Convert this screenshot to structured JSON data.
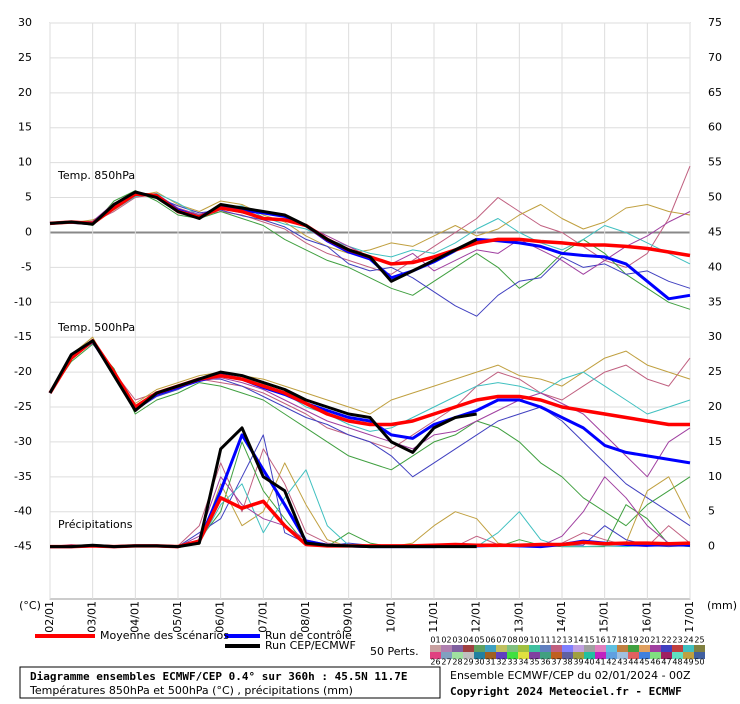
{
  "chart_data": {
    "type": "line",
    "title": "Diagramme ensembles ECMWF/CEP 0.4° sur 360h : 45.5N 11.7E",
    "subtitle": "Températures 850hPa et 500hPa (°C) , précipitations (mm)",
    "run_info": "Ensemble ECMWF/CEP du 02/01/2024 - 00Z",
    "copyright": "Copyright 2024 Meteociel.fr - ECMWF",
    "y_label": "(°C)",
    "y2_label": "(mm)",
    "annotations": [
      "Temp. 850hPa",
      "Temp. 500hPa",
      "Précipitations"
    ],
    "perturbations_label": "50 Perts.",
    "perturbation_labels": [
      "01",
      "02",
      "03",
      "04",
      "05",
      "06",
      "07",
      "08",
      "09",
      "10",
      "11",
      "12",
      "13",
      "14",
      "15",
      "16",
      "17",
      "18",
      "19",
      "20",
      "21",
      "22",
      "23",
      "24",
      "25",
      "26",
      "27",
      "28",
      "29",
      "30",
      "31",
      "32",
      "33",
      "34",
      "35",
      "36",
      "37",
      "38",
      "39",
      "40",
      "41",
      "42",
      "43",
      "44",
      "45",
      "46",
      "47",
      "48",
      "49",
      "50"
    ],
    "perturbation_colors": [
      "#c8a0a0",
      "#b080b0",
      "#8060a0",
      "#a04040",
      "#60a060",
      "#40a0c0",
      "#c0c060",
      "#80c080",
      "#a0c040",
      "#40c0a0",
      "#6080c0",
      "#c06080",
      "#8080ff",
      "#c0a0e0",
      "#a0a0a0",
      "#e080c0",
      "#60c0e0",
      "#c08040",
      "#40a040",
      "#e0a060",
      "#a040a0",
      "#4040c0",
      "#c04040",
      "#40c0c0",
      "#808040",
      "#e04080",
      "#80a0c0",
      "#a0e0a0",
      "#c0c0c0",
      "#2080a0",
      "#a06020",
      "#6040c0",
      "#40e040",
      "#e0e040",
      "#8040a0",
      "#40a080",
      "#c06020",
      "#6060a0",
      "#a0a040",
      "#20c0a0",
      "#c020c0",
      "#60a0e0",
      "#a0c0e0",
      "#e06060",
      "#4080e0",
      "#80e080",
      "#a02060",
      "#60e0c0",
      "#c0a040",
      "#4060a0"
    ],
    "grid": true,
    "x": [
      0,
      0.5,
      1,
      1.5,
      2,
      2.5,
      3,
      3.5,
      4,
      4.5,
      5,
      5.5,
      6,
      6.5,
      7,
      7.5,
      8,
      8.5,
      9,
      9.5,
      10,
      10.5,
      11,
      11.5,
      12,
      12.5,
      13,
      13.5,
      14,
      14.5,
      15
    ],
    "xlim": [
      0,
      15
    ],
    "xticks": [
      {
        "value": 0,
        "label": "02/01"
      },
      {
        "value": 1,
        "label": "03/01"
      },
      {
        "value": 2,
        "label": "04/01"
      },
      {
        "value": 3,
        "label": "05/01"
      },
      {
        "value": 4,
        "label": "06/01"
      },
      {
        "value": 5,
        "label": "07/01"
      },
      {
        "value": 6,
        "label": "08/01"
      },
      {
        "value": 7,
        "label": "09/01"
      },
      {
        "value": 8,
        "label": "10/01"
      },
      {
        "value": 9,
        "label": "11/01"
      },
      {
        "value": 10,
        "label": "12/01"
      },
      {
        "value": 11,
        "label": "13/01"
      },
      {
        "value": 12,
        "label": "14/01"
      },
      {
        "value": 13,
        "label": "15/01"
      },
      {
        "value": 14,
        "label": "16/01"
      },
      {
        "value": 15,
        "label": "17/01"
      }
    ],
    "ylim": [
      -52.5,
      30
    ],
    "yticks": [
      -45,
      -40,
      -35,
      -30,
      -25,
      -20,
      -15,
      -10,
      -5,
      0,
      5,
      10,
      15,
      20,
      25,
      30
    ],
    "y2lim": [
      -7.5,
      75
    ],
    "y2ticks": [
      0,
      5,
      10,
      15,
      20,
      25,
      30,
      35,
      40,
      45,
      50,
      55,
      60,
      65,
      70,
      75
    ],
    "series": [
      {
        "color": "#c06080",
        "width": 1,
        "values": [
          1.3,
          1.5,
          1.5,
          3.0,
          5.0,
          5.5,
          3.5,
          2.5,
          3.0,
          2.5,
          1.5,
          0.5,
          -1.5,
          -3.0,
          -4.0,
          -5.0,
          -6.0,
          -4.0,
          -2.0,
          0.0,
          2.0,
          5.0,
          3.0,
          1.0,
          0.0,
          -2.0,
          -4.0,
          -5.0,
          -3.0,
          2.0,
          9.5
        ]
      },
      {
        "color": "#40a040",
        "width": 1,
        "values": [
          1.2,
          1.6,
          1.0,
          4.5,
          6.0,
          4.5,
          2.5,
          2.0,
          3.0,
          2.0,
          1.0,
          -1.0,
          -2.5,
          -4.0,
          -5.0,
          -6.5,
          -8.0,
          -9.0,
          -7.0,
          -5.0,
          -3.0,
          -5.0,
          -8.0,
          -6.0,
          -3.0,
          -1.0,
          -3.0,
          -6.0,
          -8.0,
          -10.0,
          -11.0
        ]
      },
      {
        "color": "#c0a040",
        "width": 1,
        "values": [
          1.4,
          1.4,
          1.8,
          3.2,
          5.2,
          5.8,
          4.0,
          3.0,
          4.5,
          4.0,
          2.5,
          1.5,
          -0.5,
          -2.0,
          -3.0,
          -2.5,
          -1.5,
          -2.0,
          -0.5,
          1.0,
          -0.5,
          0.5,
          2.5,
          4.0,
          2.0,
          0.5,
          1.5,
          3.5,
          4.0,
          3.0,
          2.5
        ]
      },
      {
        "color": "#4040c0",
        "width": 1,
        "values": [
          1.3,
          1.3,
          1.1,
          3.6,
          5.6,
          5.0,
          3.8,
          2.8,
          3.2,
          2.4,
          1.8,
          0.8,
          -1.0,
          -2.0,
          -4.5,
          -5.5,
          -5.0,
          -6.5,
          -8.5,
          -10.5,
          -12.0,
          -9.0,
          -7.0,
          -6.5,
          -3.5,
          -5.0,
          -4.5,
          -6.0,
          -5.5,
          -7.0,
          -8.0
        ]
      },
      {
        "color": "#40c0c0",
        "width": 1,
        "values": [
          1.2,
          1.5,
          1.4,
          3.3,
          5.1,
          5.6,
          4.2,
          2.4,
          3.6,
          3.8,
          2.2,
          1.2,
          0.5,
          -1.0,
          -2.0,
          -3.0,
          -3.5,
          -2.5,
          -3.0,
          -1.5,
          0.5,
          2.0,
          0.0,
          -1.5,
          -2.5,
          -1.0,
          1.0,
          0.0,
          -1.5,
          -3.0,
          -4.5
        ]
      },
      {
        "color": "#a040a0",
        "width": 1,
        "values": [
          1.3,
          1.4,
          1.6,
          4.2,
          5.4,
          5.2,
          3.4,
          2.6,
          3.4,
          2.8,
          2.0,
          1.8,
          1.0,
          -0.5,
          -2.0,
          -3.5,
          -4.5,
          -3.0,
          -5.5,
          -4.0,
          -2.5,
          -3.0,
          -1.0,
          -2.5,
          -4.0,
          -6.0,
          -4.0,
          -2.0,
          -0.5,
          1.5,
          3.0
        ]
      },
      {
        "color": "#c06080",
        "width": 1,
        "values": [
          -23,
          -18,
          -15.5,
          -20,
          -24,
          -23,
          -22,
          -21,
          -21.5,
          -22,
          -23,
          -24.5,
          -26,
          -28,
          -29,
          -30,
          -31,
          -29,
          -27,
          -25,
          -22,
          -20,
          -21,
          -23,
          -24,
          -22,
          -20,
          -19,
          -21,
          -22,
          -18
        ]
      },
      {
        "color": "#40a040",
        "width": 1,
        "values": [
          -23,
          -18.5,
          -16,
          -19.5,
          -26,
          -24,
          -23,
          -21.5,
          -22,
          -23,
          -24,
          -26,
          -28,
          -30,
          -32,
          -33,
          -34,
          -32,
          -30,
          -29,
          -27,
          -28,
          -30,
          -33,
          -35,
          -38,
          -40,
          -42,
          -39,
          -37,
          -35
        ]
      },
      {
        "color": "#c0a040",
        "width": 1,
        "values": [
          -23,
          -17.5,
          -15,
          -20.5,
          -24.5,
          -22.5,
          -21.5,
          -20.5,
          -20,
          -20.5,
          -21,
          -22,
          -23,
          -24,
          -25,
          -26,
          -24,
          -23,
          -22,
          -21,
          -20,
          -19,
          -20.5,
          -21,
          -22,
          -20,
          -18,
          -17,
          -19,
          -20,
          -21
        ]
      },
      {
        "color": "#4040c0",
        "width": 1,
        "values": [
          -23,
          -18,
          -15.8,
          -19.8,
          -25.5,
          -23.5,
          -22.5,
          -21,
          -21,
          -22,
          -23.5,
          -25,
          -26.5,
          -27.5,
          -29,
          -30,
          -32,
          -35,
          -33,
          -31,
          -29,
          -27,
          -26,
          -25,
          -27,
          -30,
          -33,
          -36,
          -38,
          -40,
          -42
        ]
      },
      {
        "color": "#40c0c0",
        "width": 1,
        "values": [
          -23,
          -17.8,
          -15.4,
          -20.2,
          -24.8,
          -23,
          -22,
          -21,
          -20.5,
          -21,
          -22,
          -23,
          -25,
          -26,
          -27.5,
          -28.5,
          -28,
          -26.5,
          -25,
          -23.5,
          -22,
          -21.5,
          -22,
          -23,
          -21,
          -20,
          -22,
          -24,
          -26,
          -25,
          -24
        ]
      },
      {
        "color": "#a040a0",
        "width": 1,
        "values": [
          -23,
          -18.2,
          -15.7,
          -20,
          -25,
          -23.3,
          -22.3,
          -21.3,
          -20.8,
          -21.5,
          -22.5,
          -24,
          -25.5,
          -27,
          -28,
          -29,
          -30,
          -31,
          -29,
          -28.5,
          -27,
          -25.5,
          -24,
          -23,
          -24.5,
          -26,
          -29,
          -32,
          -35,
          -30,
          -28
        ]
      },
      {
        "color": "#c06080",
        "width": 1,
        "axis": "y2",
        "values": [
          0,
          0.3,
          0,
          0,
          0.2,
          0,
          0.1,
          3,
          12,
          5,
          14,
          9,
          2,
          0.5,
          0.2,
          0,
          0.1,
          0.3,
          0,
          0,
          1.5,
          0.3,
          0,
          0,
          0.5,
          2,
          1,
          0.2,
          0,
          3,
          0.5
        ]
      },
      {
        "color": "#40a040",
        "width": 1,
        "axis": "y2",
        "values": [
          0,
          0,
          0.2,
          0,
          0,
          0.1,
          0,
          1,
          5,
          15,
          8,
          4,
          0.3,
          0,
          2,
          0.5,
          0,
          0,
          0,
          0.2,
          0,
          0,
          1,
          0.2,
          0,
          0,
          0,
          6,
          4,
          0.3,
          0
        ]
      },
      {
        "color": "#c0a040",
        "width": 1,
        "axis": "y2",
        "values": [
          0,
          0.1,
          0,
          0,
          0.1,
          0,
          0.2,
          0.3,
          9,
          3,
          5,
          12,
          6,
          1,
          0,
          0,
          0,
          0.5,
          3,
          5,
          4,
          0.5,
          0,
          0,
          0.2,
          0,
          0.1,
          0.5,
          8,
          10,
          4
        ]
      },
      {
        "color": "#4040c0",
        "width": 1,
        "axis": "y2",
        "values": [
          0,
          0,
          0,
          0.1,
          0,
          0.1,
          0,
          2,
          4,
          10,
          16,
          2,
          0.5,
          0.1,
          0.5,
          0.2,
          0,
          0,
          0,
          0,
          0,
          0.3,
          0,
          0.4,
          0.3,
          0.2,
          3,
          1,
          0.2,
          0,
          0.2
        ]
      },
      {
        "color": "#40c0c0",
        "width": 1,
        "axis": "y2",
        "values": [
          0,
          0,
          0.1,
          0,
          0,
          0,
          0.1,
          0.5,
          6,
          9,
          2,
          7,
          11,
          3,
          0.2,
          0,
          0.1,
          0,
          0,
          0,
          0,
          2,
          5,
          1,
          0,
          0,
          0.1,
          0,
          0.3,
          0.6,
          0.1
        ]
      },
      {
        "color": "#a040a0",
        "width": 1,
        "axis": "y2",
        "values": [
          0,
          0.2,
          0,
          0,
          0.1,
          0,
          0,
          1.5,
          10,
          6,
          4,
          3,
          1,
          0.3,
          0,
          0,
          0,
          0,
          0,
          0,
          0,
          0,
          0,
          0.1,
          1.5,
          5,
          10,
          7,
          3,
          0.5,
          0.2
        ]
      },
      {
        "name": "Run de contrôle",
        "color": "#0000ff",
        "width": 3,
        "values": [
          1.3,
          1.5,
          1.3,
          3.8,
          5.5,
          5.3,
          3.2,
          2.2,
          3.8,
          3.2,
          2.8,
          2.3,
          1.0,
          -1.2,
          -2.8,
          -3.8,
          -6.5,
          -5.5,
          -4.2,
          -2.6,
          -1.0,
          -1.2,
          -1.5,
          -2.0,
          -3.0,
          -3.3,
          -3.5,
          -4.5,
          -7.0,
          -9.5,
          -9.0
        ]
      },
      {
        "color": "#0000ff",
        "width": 3,
        "values": [
          -23,
          -17.8,
          -15.6,
          -20.2,
          -25.2,
          -23.2,
          -22.2,
          -21.2,
          -20.4,
          -21,
          -22.2,
          -23.2,
          -24.5,
          -25.5,
          -26.5,
          -27,
          -29,
          -29.5,
          -27.5,
          -26.5,
          -25.5,
          -24,
          -24,
          -25,
          -26.5,
          -28,
          -30.5,
          -31.5,
          -32,
          -32.5,
          -33
        ]
      },
      {
        "color": "#0000ff",
        "width": 3,
        "axis": "y2",
        "values": [
          0,
          0,
          0.1,
          0,
          0.1,
          0.1,
          0,
          0.8,
          8,
          16,
          11,
          6,
          0.8,
          0.2,
          0.1,
          0,
          0,
          0,
          0,
          0.1,
          0.1,
          0.2,
          0.1,
          0,
          0.3,
          0.8,
          0.5,
          0.3,
          0.2,
          0.3,
          0.2
        ]
      },
      {
        "name": "Moyenne des scénarios",
        "color": "#ff0000",
        "width": 3.5,
        "values": [
          1.3,
          1.5,
          1.3,
          3.5,
          5.5,
          5.3,
          3.0,
          2.2,
          3.5,
          3.0,
          2.0,
          1.8,
          1.0,
          -1.0,
          -2.5,
          -3.5,
          -4.5,
          -4.3,
          -3.5,
          -2.5,
          -1.5,
          -1.0,
          -1.0,
          -1.3,
          -1.5,
          -1.8,
          -1.8,
          -2.0,
          -2.3,
          -2.8,
          -3.3
        ]
      },
      {
        "color": "#ff0000",
        "width": 3.5,
        "values": [
          -23,
          -18,
          -15.5,
          -20,
          -25,
          -23,
          -22,
          -21,
          -20.5,
          -21,
          -22,
          -23,
          -24.5,
          -26,
          -27,
          -27.5,
          -27.5,
          -27,
          -26,
          -25,
          -24,
          -23.5,
          -23.5,
          -24,
          -25,
          -25.5,
          -26,
          -26.5,
          -27,
          -27.5,
          -27.5
        ]
      },
      {
        "color": "#ff0000",
        "width": 3.5,
        "axis": "y2",
        "values": [
          0,
          0,
          0.1,
          0,
          0.1,
          0.1,
          0,
          0.8,
          7.0,
          5.5,
          6.5,
          3.0,
          0.3,
          0.1,
          0.1,
          0.1,
          0.1,
          0.1,
          0.2,
          0.3,
          0.2,
          0.2,
          0.2,
          0.3,
          0.3,
          0.6,
          0.4,
          0.5,
          0.5,
          0.4,
          0.5
        ]
      },
      {
        "name": "Run CEP/ECMWF",
        "color": "#000000",
        "width": 3,
        "values": [
          1.3,
          1.5,
          1.2,
          4.0,
          5.8,
          5.0,
          3.0,
          2.0,
          4.0,
          3.5,
          3.0,
          2.5,
          1.0,
          -1.0,
          -2.5,
          -3.5,
          -7.0,
          -5.5,
          -4.0,
          -2.5,
          -1.0,
          null,
          null,
          null,
          null,
          null,
          null,
          null,
          null,
          null,
          null
        ]
      },
      {
        "color": "#000000",
        "width": 3,
        "values": [
          -23,
          -17.5,
          -15.5,
          -20.5,
          -25.5,
          -23,
          -22,
          -21,
          -20,
          -20.5,
          -21.5,
          -22.5,
          -24,
          -25,
          -26,
          -26.5,
          -30,
          -31.5,
          -28,
          -26.5,
          -26,
          null,
          null,
          null,
          null,
          null,
          null,
          null,
          null,
          null,
          null
        ]
      },
      {
        "color": "#000000",
        "width": 3,
        "axis": "y2",
        "values": [
          0,
          0,
          0.2,
          0,
          0.1,
          0.1,
          0,
          0.5,
          14,
          17,
          10,
          8,
          0.5,
          0.2,
          0.1,
          0,
          0,
          0,
          0,
          0,
          0,
          null,
          null,
          null,
          null,
          null,
          null,
          null,
          null,
          null,
          null
        ]
      }
    ]
  }
}
